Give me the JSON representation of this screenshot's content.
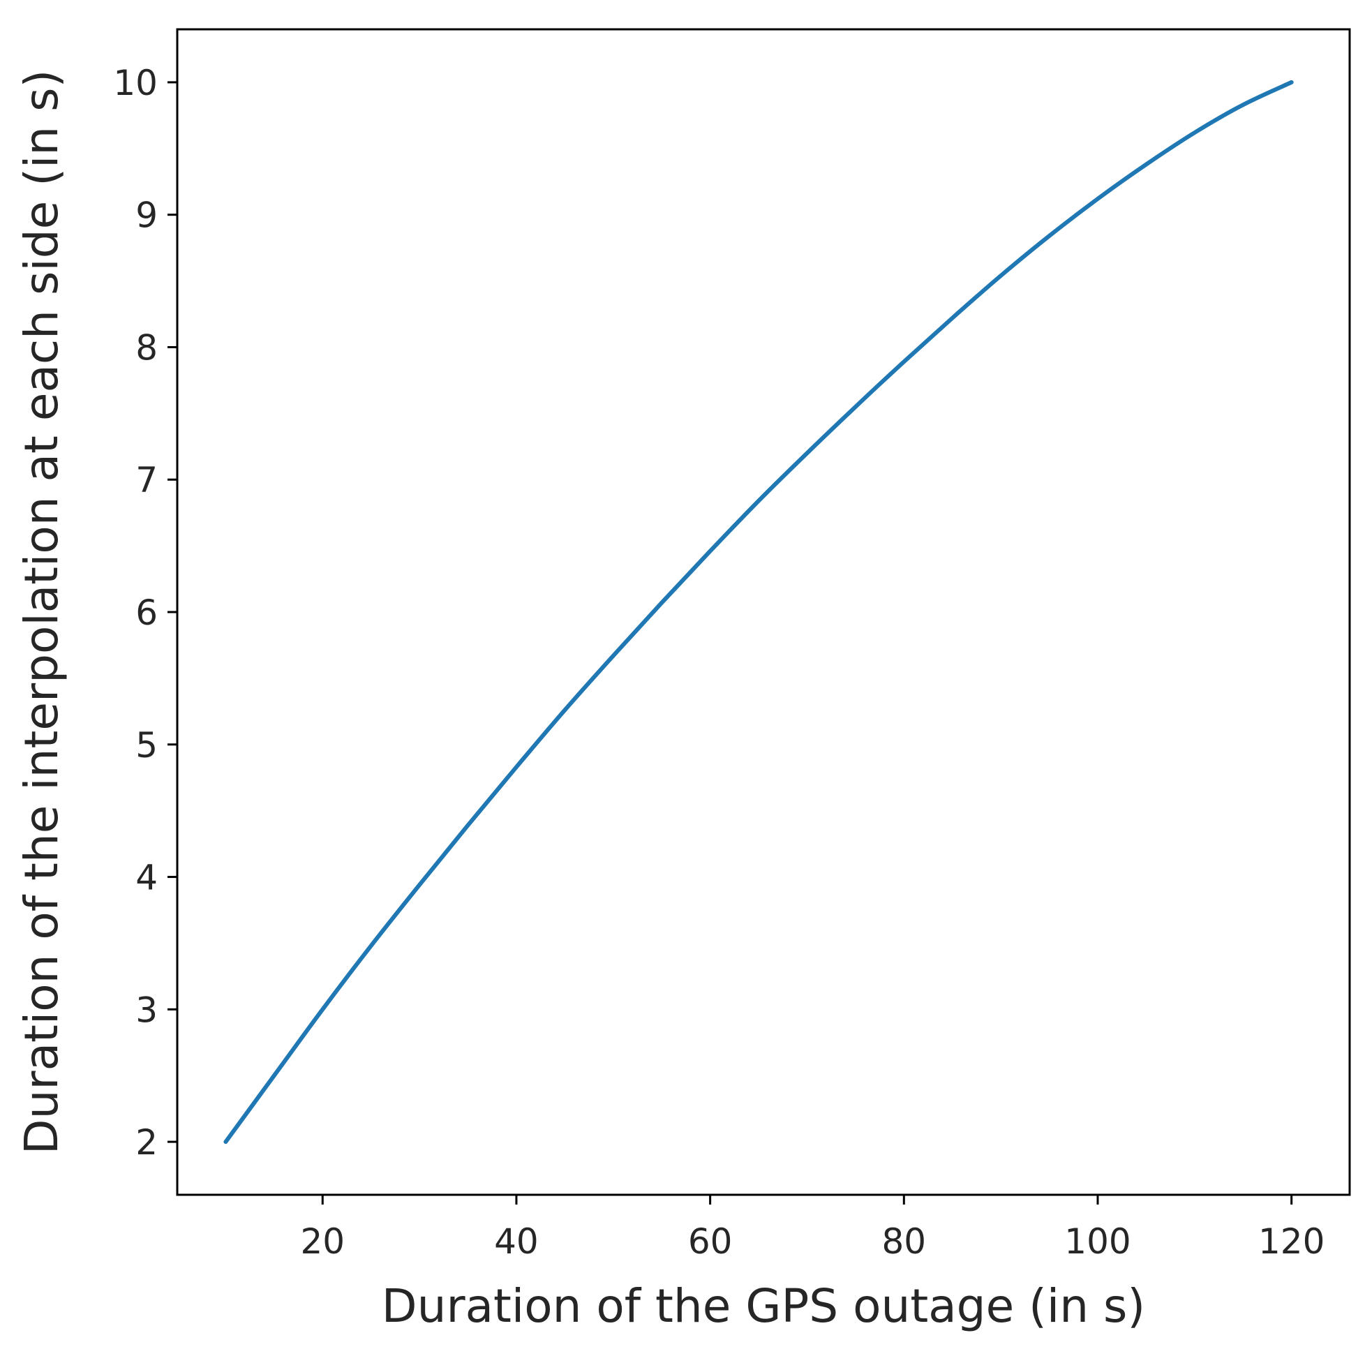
{
  "chart_data": {
    "type": "line",
    "title": "",
    "xlabel": "Duration of the GPS outage (in s)",
    "ylabel": "Duration of the interpolation at each side (in s)",
    "xlim": [
      5,
      126
    ],
    "ylim": [
      1.6,
      10.4
    ],
    "xticks": [
      20,
      40,
      60,
      80,
      100,
      120
    ],
    "yticks": [
      2,
      3,
      4,
      5,
      6,
      7,
      8,
      9,
      10
    ],
    "xtick_labels": [
      "20",
      "40",
      "60",
      "80",
      "100",
      "120"
    ],
    "ytick_labels": [
      "2",
      "3",
      "4",
      "5",
      "6",
      "7",
      "8",
      "9",
      "10"
    ],
    "grid": false,
    "legend": "none",
    "series": [
      {
        "color": "#1f77b4",
        "x": [
          10,
          15,
          20,
          25,
          30,
          35,
          40,
          45,
          50,
          55,
          60,
          65,
          70,
          75,
          80,
          85,
          90,
          95,
          100,
          105,
          110,
          115,
          120
        ],
        "y": [
          2.0,
          2.5,
          3.0,
          3.48,
          3.94,
          4.39,
          4.83,
          5.26,
          5.67,
          6.07,
          6.46,
          6.84,
          7.2,
          7.55,
          7.89,
          8.22,
          8.54,
          8.84,
          9.12,
          9.38,
          9.62,
          9.83,
          10.0
        ]
      }
    ]
  }
}
